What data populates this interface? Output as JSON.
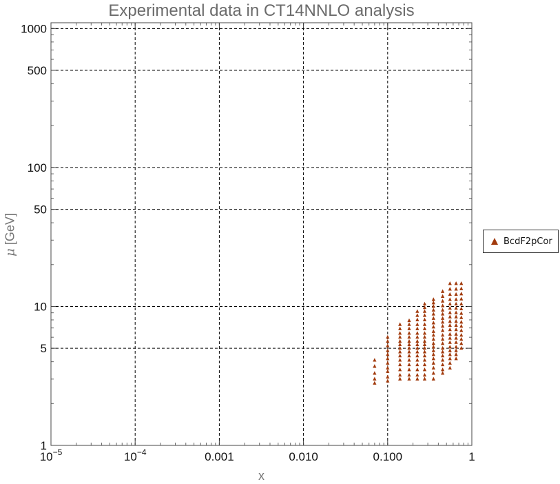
{
  "chart_data": {
    "type": "scatter",
    "title": "Experimental data in CT14NNLO analysis",
    "xlabel": "x",
    "ylabel_symbol": "μ",
    "ylabel_unit": "[GeV]",
    "x_scale": "log",
    "y_scale": "log",
    "xlim": [
      1e-05,
      1
    ],
    "ylim": [
      1,
      1100
    ],
    "grid": true,
    "legend_position": "right",
    "x_ticks": [
      {
        "value": 1e-05,
        "base": "10",
        "exp": "−5"
      },
      {
        "value": 0.0001,
        "base": "10",
        "exp": "−4"
      },
      {
        "value": 0.001,
        "label": "0.001"
      },
      {
        "value": 0.01,
        "label": "0.010"
      },
      {
        "value": 0.1,
        "label": "0.100"
      },
      {
        "value": 1,
        "label": "1"
      }
    ],
    "y_ticks": [
      {
        "value": 1,
        "label": "1"
      },
      {
        "value": 5,
        "label": "5"
      },
      {
        "value": 10,
        "label": "10"
      },
      {
        "value": 50,
        "label": "50"
      },
      {
        "value": 100,
        "label": "100"
      },
      {
        "value": 500,
        "label": "500"
      },
      {
        "value": 1000,
        "label": "1000"
      }
    ],
    "series": [
      {
        "name": "BcdF2pCor",
        "color": "#a13a0c",
        "marker": "triangle",
        "columns": [
          {
            "x": 0.07,
            "mu": [
              2.8,
              3.0,
              3.3,
              3.7,
              4.1
            ]
          },
          {
            "x": 0.1,
            "mu": [
              2.9,
              3.1,
              3.4,
              3.6,
              3.9,
              4.2,
              4.5,
              4.8,
              5.2,
              5.6,
              6.0
            ]
          },
          {
            "x": 0.14,
            "mu": [
              3.0,
              3.2,
              3.5,
              3.8,
              4.1,
              4.4,
              4.7,
              5.0,
              5.3,
              5.6,
              6.0,
              6.4,
              6.9,
              7.4
            ]
          },
          {
            "x": 0.18,
            "mu": [
              3.0,
              3.2,
              3.5,
              3.8,
              4.1,
              4.4,
              4.7,
              5.0,
              5.3,
              5.6,
              6.0,
              6.4,
              6.9,
              7.4,
              7.9
            ]
          },
          {
            "x": 0.225,
            "mu": [
              3.0,
              3.2,
              3.5,
              3.8,
              4.1,
              4.4,
              4.7,
              5.0,
              5.3,
              5.6,
              6.0,
              6.4,
              6.9,
              7.4,
              8.0,
              8.6,
              9.2
            ]
          },
          {
            "x": 0.275,
            "mu": [
              3.0,
              3.2,
              3.5,
              3.8,
              4.1,
              4.4,
              4.7,
              5.0,
              5.3,
              5.6,
              6.0,
              6.4,
              6.9,
              7.4,
              8.0,
              8.6,
              9.2,
              9.8,
              10.4
            ]
          },
          {
            "x": 0.35,
            "mu": [
              3.0,
              3.3,
              3.6,
              3.9,
              4.2,
              4.5,
              4.8,
              5.1,
              5.4,
              5.8,
              6.2,
              6.6,
              7.1,
              7.6,
              8.2,
              8.8,
              9.4,
              10.0,
              10.6,
              11.2
            ]
          },
          {
            "x": 0.45,
            "mu": [
              3.3,
              3.5,
              3.8,
              4.1,
              4.4,
              4.7,
              5.0,
              5.4,
              5.8,
              6.2,
              6.7,
              7.2,
              7.7,
              8.2,
              8.8,
              9.4,
              10.1,
              10.9,
              11.8,
              12.8
            ]
          },
          {
            "x": 0.55,
            "mu": [
              3.6,
              3.9,
              4.2,
              4.5,
              4.8,
              5.1,
              5.5,
              5.9,
              6.3,
              6.8,
              7.3,
              7.8,
              8.4,
              9.0,
              9.7,
              10.4,
              11.2,
              12.2,
              13.3,
              14.6
            ]
          },
          {
            "x": 0.65,
            "mu": [
              4.2,
              4.5,
              4.8,
              5.1,
              5.5,
              5.9,
              6.3,
              6.8,
              7.3,
              7.8,
              8.4,
              9.0,
              9.7,
              10.4,
              11.2,
              12.2,
              13.3,
              14.6
            ]
          },
          {
            "x": 0.75,
            "mu": [
              5.0,
              5.4,
              5.8,
              6.2,
              6.7,
              7.2,
              7.7,
              8.3,
              8.9,
              9.6,
              10.4,
              11.3,
              12.3,
              13.4,
              14.6
            ]
          }
        ]
      }
    ]
  }
}
